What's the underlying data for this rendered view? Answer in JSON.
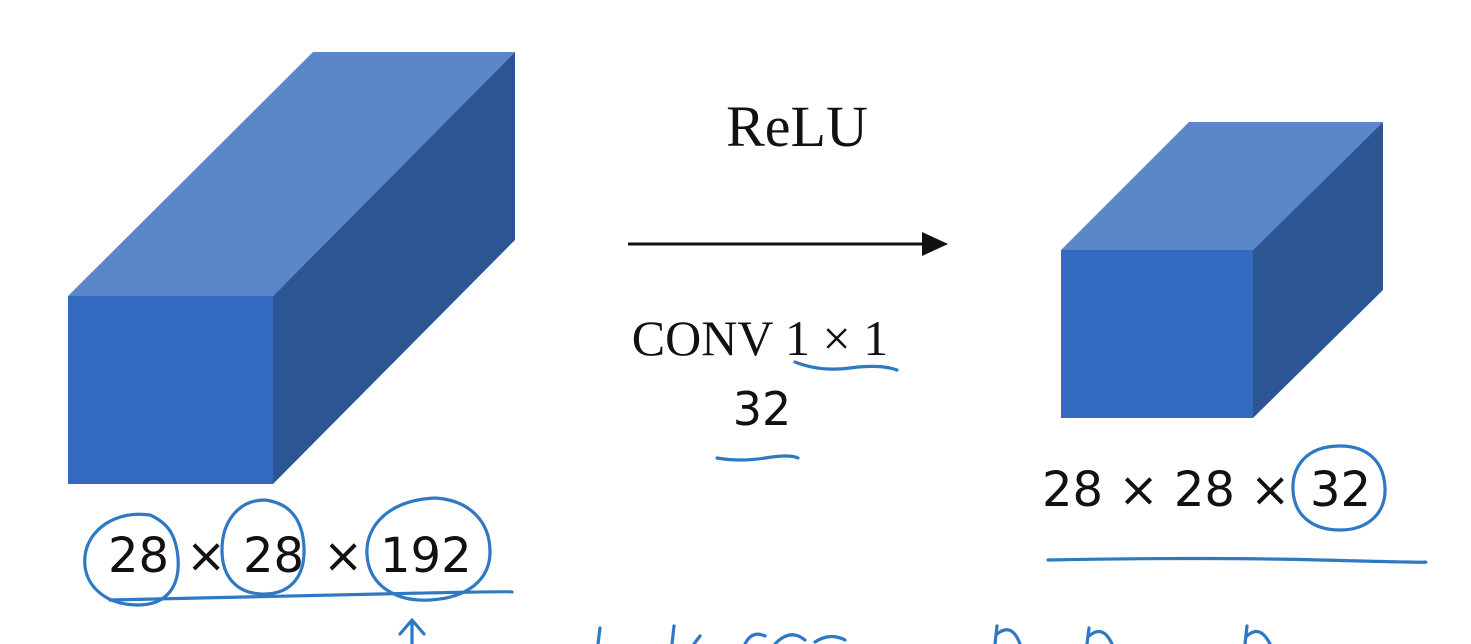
{
  "operation": {
    "activation_label": "ReLU",
    "conv_label": "CONV 1 × 1",
    "filter_count": "32"
  },
  "input_volume": {
    "dim_label": "28 × 28 × 192",
    "height": "28",
    "width": "28",
    "channels": "192",
    "times_symbol": "×"
  },
  "output_volume": {
    "dim_label": "28 × 28 × 32",
    "prefix": "28 × 28 ×",
    "channels": "32"
  },
  "colors": {
    "volume_front": "#3369bf",
    "volume_top": "#5b86c9",
    "volume_side": "#2c5594",
    "annotation_ink": "#2f78c4"
  }
}
